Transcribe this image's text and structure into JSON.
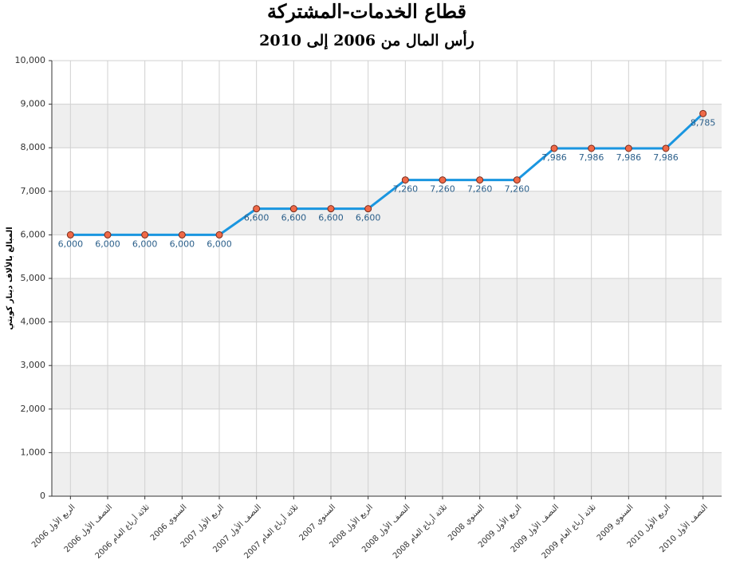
{
  "chart_data": {
    "type": "line",
    "title": "قطاع الخدمات-المشتركة",
    "subtitle": "رأس المال من 2006 إلى 2010",
    "y_label": "المبالغ بالألاف دينار كويتي",
    "categories": [
      "الربع الأول 2006",
      "النصف الأول 2006",
      "ثلاثة أرباع العام 2006",
      "السنوي 2006",
      "الربع الأول 2007",
      "النصف الأول 2007",
      "ثلاثة أرباع العام 2007",
      "السنوي 2007",
      "الربع الأول 2008",
      "النصف الأول 2008",
      "ثلاثة أرباع العام 2008",
      "السنوي 2008",
      "الربع الأول 2009",
      "النصف الأول 2009",
      "ثلاثة أرباع العام 2009",
      "السنوي 2009",
      "الربع الأول 2010",
      "النصف الأول 2010"
    ],
    "series": [
      {
        "name": "رأس المال",
        "color": "#1a96e0",
        "marker_color": "#f06a48",
        "values": [
          6000,
          6000,
          6000,
          6000,
          6000,
          6600,
          6600,
          6600,
          6600,
          7260,
          7260,
          7260,
          7260,
          7986,
          7986,
          7986,
          7986,
          8785
        ],
        "value_labels": [
          "6,000",
          "6,000",
          "6,000",
          "6,000",
          "6,000",
          "6,600",
          "6,600",
          "6,600",
          "6,600",
          "7,260",
          "7,260",
          "7,260",
          "7,260",
          "7,986",
          "7,986",
          "7,986",
          "7,986",
          "8,785"
        ]
      }
    ],
    "ylim": [
      0,
      10000
    ],
    "yticks": [
      0,
      {
        "value": 1000,
        "label": "1,000"
      },
      {
        "value": 2000,
        "label": "2,000"
      },
      {
        "value": 3000,
        "label": "3,000"
      },
      {
        "value": 4000,
        "label": "4,000"
      },
      {
        "value": 5000,
        "label": "5,000"
      },
      {
        "value": 6000,
        "label": "6,000"
      },
      {
        "value": 7000,
        "label": "7,000"
      },
      {
        "value": 8000,
        "label": "8,000"
      },
      {
        "value": 9000,
        "label": "9,000"
      },
      {
        "value": 10000,
        "label": "10,000"
      }
    ],
    "grid": true,
    "band_color": "#efefef"
  }
}
